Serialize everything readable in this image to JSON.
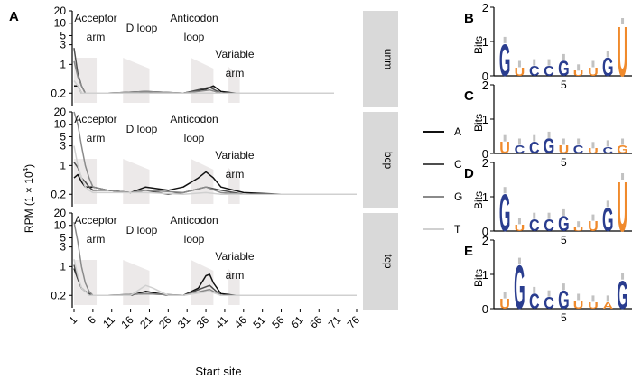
{
  "panel_a": {
    "letter": "A",
    "ylabel_text": "RPM (1 × 10",
    "ylabel_sup": "4",
    "ylabel_close": ")",
    "xlabel": "Start site",
    "xticks": [
      "1",
      "6",
      "11",
      "16",
      "21",
      "26",
      "31",
      "36",
      "41",
      "46",
      "51",
      "56",
      "61",
      "66",
      "71",
      "76"
    ],
    "yticks": [
      "0.2",
      "1",
      "3",
      "5",
      "10",
      "20"
    ],
    "regions": {
      "acceptor": [
        "Acceptor",
        "arm"
      ],
      "dloop": [
        "D loop"
      ],
      "anticodon": [
        "Anticodon",
        "loop"
      ],
      "variable": [
        "Variable",
        "arm"
      ]
    },
    "facets": [
      "unm",
      "bcp",
      "tcp"
    ],
    "legend": [
      {
        "label": "A",
        "color": "#111111"
      },
      {
        "label": "C",
        "color": "#4d4d4d"
      },
      {
        "label": "G",
        "color": "#8a8a8a"
      },
      {
        "label": "T",
        "color": "#d0d0d0"
      }
    ]
  },
  "logos": [
    {
      "letter": "B",
      "ylabel": "Bits",
      "yticks": [
        "0",
        "1",
        "2"
      ],
      "xtick": "5"
    },
    {
      "letter": "C",
      "ylabel": "Bits",
      "yticks": [
        "0",
        "1",
        "2"
      ],
      "xtick": "5"
    },
    {
      "letter": "D",
      "ylabel": "Bits",
      "yticks": [
        "0",
        "1",
        "2"
      ],
      "xtick": "5"
    },
    {
      "letter": "E",
      "ylabel": "Bits",
      "yticks": [
        "0",
        "1",
        "2"
      ],
      "xtick": "5"
    }
  ],
  "colors": {
    "blue": "#2a3d8f",
    "orange": "#f08a2c",
    "shade": "#ece9e9",
    "strip": "#d9d9d9"
  },
  "chart_data": [
    {
      "type": "line",
      "facets": [
        "unm",
        "bcp",
        "tcp"
      ],
      "xlabel": "Start site",
      "ylabel": "RPM (1 × 10^4)",
      "xlim": [
        1,
        76
      ],
      "ylim": [
        0.1,
        20
      ],
      "yscale": "log",
      "legend": "right",
      "shaded_regions": [
        {
          "name": "Acceptor arm",
          "start": 1,
          "end": 7
        },
        {
          "name": "D loop",
          "start": 14,
          "end": 21
        },
        {
          "name": "Anticodon loop",
          "start": 32,
          "end": 38
        },
        {
          "name": "Variable arm",
          "start": 42,
          "end": 45
        }
      ],
      "series": {
        "unm": [
          {
            "name": "A",
            "x": [
              1,
              2,
              3,
              4,
              5,
              6,
              10,
              20,
              30,
              36,
              38,
              40,
              44,
              50,
              60,
              70
            ],
            "y": [
              0.3,
              0.3,
              0.2,
              0.2,
              0.2,
              0.2,
              0.2,
              0.22,
              0.2,
              0.25,
              0.3,
              0.22,
              0.2,
              0.2,
              0.2,
              0.2
            ]
          },
          {
            "name": "C",
            "x": [
              1,
              2,
              3,
              4,
              5,
              10,
              20,
              30,
              37,
              40,
              50,
              60,
              70
            ],
            "y": [
              2.5,
              0.6,
              0.3,
              0.2,
              0.2,
              0.2,
              0.2,
              0.2,
              0.28,
              0.2,
              0.2,
              0.2,
              0.2
            ]
          },
          {
            "name": "G",
            "x": [
              1,
              2,
              3,
              4,
              5,
              10,
              20,
              30,
              37,
              40,
              50,
              60,
              70
            ],
            "y": [
              1.2,
              0.5,
              0.3,
              0.2,
              0.2,
              0.2,
              0.22,
              0.2,
              0.24,
              0.2,
              0.2,
              0.2,
              0.2
            ]
          },
          {
            "name": "T",
            "x": [
              1,
              2,
              3,
              4,
              5,
              10,
              20,
              30,
              40,
              50,
              60,
              70
            ],
            "y": [
              0.4,
              0.3,
              0.2,
              0.2,
              0.2,
              0.2,
              0.2,
              0.2,
              0.2,
              0.2,
              0.2,
              0.2
            ]
          }
        ],
        "bcp": [
          {
            "name": "A",
            "x": [
              1,
              2,
              3,
              4,
              5,
              6,
              10,
              16,
              20,
              26,
              30,
              34,
              36,
              38,
              40,
              46,
              56,
              66,
              76
            ],
            "y": [
              0.5,
              0.6,
              0.4,
              0.3,
              0.3,
              0.3,
              0.25,
              0.22,
              0.3,
              0.25,
              0.3,
              0.5,
              0.7,
              0.5,
              0.3,
              0.22,
              0.2,
              0.2,
              0.2
            ]
          },
          {
            "name": "C",
            "x": [
              1,
              2,
              3,
              4,
              5,
              6,
              10,
              16,
              20,
              26,
              30,
              36,
              40,
              46,
              56,
              66,
              76
            ],
            "y": [
              1.2,
              0.9,
              0.5,
              0.4,
              0.3,
              0.25,
              0.25,
              0.22,
              0.25,
              0.2,
              0.22,
              0.3,
              0.25,
              0.2,
              0.2,
              0.2,
              0.2
            ]
          },
          {
            "name": "G",
            "x": [
              1,
              2,
              3,
              4,
              5,
              6,
              10,
              16,
              20,
              30,
              36,
              40,
              46,
              56,
              66,
              76
            ],
            "y": [
              20,
              10,
              3,
              1,
              0.5,
              0.3,
              0.25,
              0.22,
              0.25,
              0.22,
              0.3,
              0.22,
              0.2,
              0.2,
              0.2,
              0.2
            ]
          },
          {
            "name": "T",
            "x": [
              1,
              2,
              3,
              4,
              5,
              6,
              10,
              20,
              30,
              36,
              40,
              50,
              60,
              76
            ],
            "y": [
              3,
              1,
              0.5,
              0.3,
              0.25,
              0.22,
              0.22,
              0.22,
              0.2,
              0.22,
              0.2,
              0.2,
              0.2,
              0.2
            ]
          }
        ],
        "tcp": [
          {
            "name": "A",
            "x": [
              1,
              2,
              3,
              4,
              5,
              6,
              10,
              16,
              20,
              26,
              30,
              34,
              36,
              37,
              38,
              40,
              44,
              50,
              60,
              70,
              76
            ],
            "y": [
              0.9,
              0.5,
              0.3,
              0.25,
              0.22,
              0.2,
              0.2,
              0.2,
              0.25,
              0.2,
              0.2,
              0.3,
              0.6,
              0.65,
              0.4,
              0.22,
              0.2,
              0.2,
              0.2,
              0.2,
              0.2
            ]
          },
          {
            "name": "C",
            "x": [
              1,
              2,
              3,
              4,
              5,
              6,
              10,
              20,
              30,
              37,
              40,
              50,
              60,
              70,
              76
            ],
            "y": [
              1.1,
              0.5,
              0.3,
              0.25,
              0.22,
              0.2,
              0.2,
              0.22,
              0.2,
              0.35,
              0.2,
              0.2,
              0.2,
              0.2,
              0.2
            ]
          },
          {
            "name": "G",
            "x": [
              1,
              2,
              3,
              4,
              5,
              6,
              10,
              20,
              30,
              37,
              40,
              50,
              60,
              70,
              76
            ],
            "y": [
              12,
              4,
              1,
              0.4,
              0.25,
              0.2,
              0.2,
              0.22,
              0.2,
              0.28,
              0.2,
              0.2,
              0.2,
              0.2,
              0.2
            ]
          },
          {
            "name": "T",
            "x": [
              1,
              2,
              3,
              4,
              5,
              6,
              10,
              16,
              20,
              22,
              26,
              30,
              37,
              40,
              50,
              60,
              70,
              76
            ],
            "y": [
              1.5,
              0.6,
              0.3,
              0.25,
              0.2,
              0.2,
              0.2,
              0.2,
              0.35,
              0.3,
              0.2,
              0.2,
              0.25,
              0.2,
              0.2,
              0.2,
              0.2,
              0.2
            ]
          }
        ]
      }
    },
    {
      "type": "sequence-logo",
      "panels": [
        "B",
        "C",
        "D",
        "E"
      ],
      "ylabel": "Bits",
      "ylim": [
        0,
        2
      ],
      "xtick": "5",
      "stacks": {
        "B": [
          [
            "G",
            0.95,
            "blue"
          ],
          [
            "U",
            0.25,
            "orange"
          ],
          [
            "C",
            0.3,
            "blue"
          ],
          [
            "C",
            0.3,
            "blue"
          ],
          [
            "G",
            0.45,
            "blue"
          ],
          [
            "U",
            0.15,
            "orange"
          ],
          [
            "U",
            0.25,
            "orange"
          ],
          [
            "G",
            0.55,
            "blue"
          ],
          [
            "U",
            1.5,
            "orange"
          ]
        ],
        "C": [
          [
            "U",
            0.35,
            "orange"
          ],
          [
            "C",
            0.25,
            "blue"
          ],
          [
            "C",
            0.35,
            "blue"
          ],
          [
            "G",
            0.45,
            "blue"
          ],
          [
            "U",
            0.25,
            "orange"
          ],
          [
            "C",
            0.25,
            "blue"
          ],
          [
            "U",
            0.15,
            "orange"
          ],
          [
            "C",
            0.2,
            "blue"
          ],
          [
            "G",
            0.25,
            "orange"
          ]
        ],
        "D": [
          [
            "G",
            1.1,
            "blue"
          ],
          [
            "U",
            0.2,
            "orange"
          ],
          [
            "C",
            0.35,
            "blue"
          ],
          [
            "C",
            0.35,
            "blue"
          ],
          [
            "G",
            0.45,
            "blue"
          ],
          [
            "U",
            0.1,
            "orange"
          ],
          [
            "U",
            0.3,
            "orange"
          ],
          [
            "G",
            0.7,
            "blue"
          ],
          [
            "U",
            1.5,
            "orange"
          ]
        ],
        "E": [
          [
            "U",
            0.3,
            "orange"
          ],
          [
            "G",
            1.3,
            "blue"
          ],
          [
            "C",
            0.45,
            "blue"
          ],
          [
            "C",
            0.35,
            "blue"
          ],
          [
            "G",
            0.55,
            "blue"
          ],
          [
            "U",
            0.25,
            "orange"
          ],
          [
            "U",
            0.2,
            "orange"
          ],
          [
            "A",
            0.2,
            "orange"
          ],
          [
            "G",
            0.85,
            "blue"
          ]
        ]
      }
    }
  ]
}
